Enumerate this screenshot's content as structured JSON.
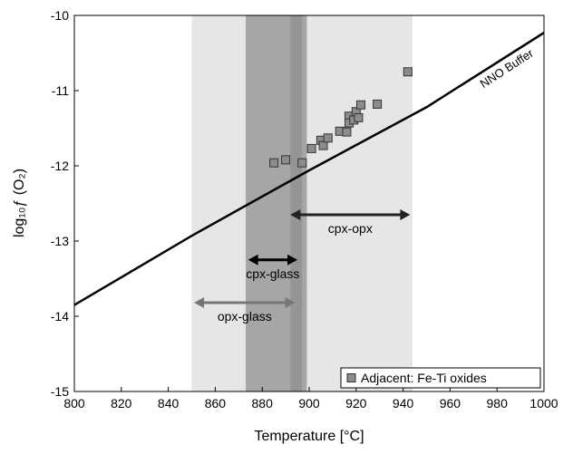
{
  "chart_data": {
    "type": "scatter",
    "xlabel": "Temperature [°C]",
    "ylabel": "log₁₀ƒ (O₂)",
    "xlim": [
      800,
      1000
    ],
    "ylim": [
      -15,
      -10
    ],
    "xticks": [
      800,
      820,
      840,
      860,
      880,
      900,
      920,
      940,
      960,
      980,
      1000
    ],
    "yticks": [
      -15,
      -14,
      -13,
      -12,
      -11,
      -10
    ],
    "bands": [
      {
        "x": [
          850,
          944
        ],
        "color": "#e6e6e6"
      },
      {
        "x": [
          873,
          899
        ],
        "color": "#a6a6a6"
      },
      {
        "x": [
          892,
          897
        ],
        "color": "#959595"
      }
    ],
    "line": {
      "name": "NNO Buffer",
      "color": "#000000",
      "x": [
        800,
        850,
        900,
        950,
        1000
      ],
      "values": [
        -13.85,
        -12.93,
        -12.06,
        -11.22,
        -10.23
      ]
    },
    "series": [
      {
        "name": "Adjacent: Fe-Ti oxides",
        "color": "#8c8c8c",
        "x": [
          885,
          890,
          897,
          901,
          905,
          906,
          908,
          913,
          916,
          917,
          917,
          919,
          920,
          921,
          922,
          929,
          942
        ],
        "values": [
          -11.96,
          -11.92,
          -11.96,
          -11.77,
          -11.66,
          -11.73,
          -11.63,
          -11.54,
          -11.55,
          -11.34,
          -11.43,
          -11.39,
          -11.28,
          -11.36,
          -11.19,
          -11.18,
          -10.75
        ]
      }
    ],
    "arrows": [
      {
        "label": "cpx-opx",
        "x": [
          892,
          943
        ],
        "y": -12.65,
        "color": "#222222"
      },
      {
        "label": "cpx-glass",
        "x": [
          874,
          895
        ],
        "y": -13.25,
        "color": "#000000"
      },
      {
        "label": "opx-glass",
        "x": [
          851,
          894
        ],
        "y": -13.82,
        "color": "#777777"
      }
    ],
    "legend": "lower right"
  }
}
